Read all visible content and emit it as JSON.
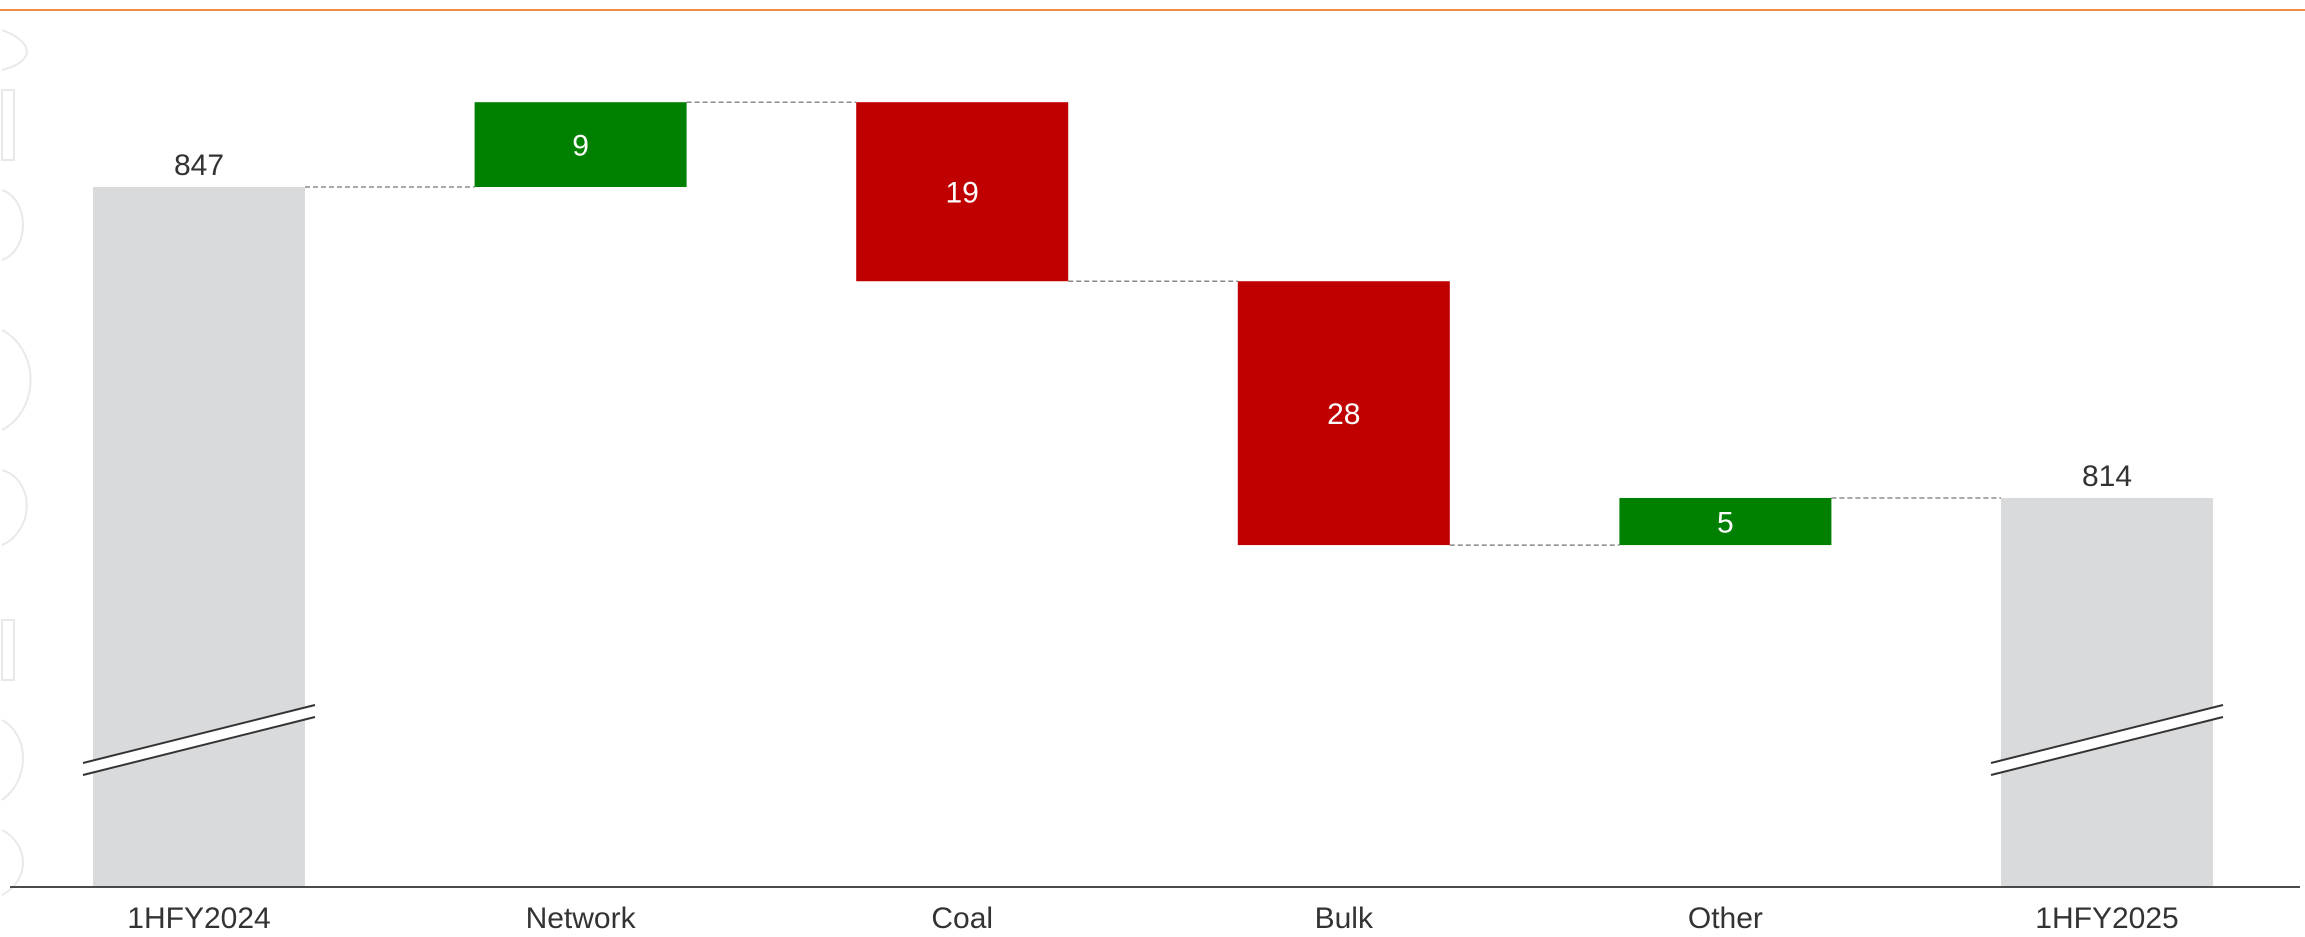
{
  "chart_data": {
    "type": "bar",
    "subtype": "waterfall",
    "title": "",
    "xlabel": "",
    "ylabel": "",
    "categories": [
      "1HFY2024",
      "Network",
      "Coal",
      "Bulk",
      "Other",
      "1HFY2025"
    ],
    "bars": [
      {
        "category": "1HFY2024",
        "kind": "total",
        "value": 847,
        "label": "847"
      },
      {
        "category": "Network",
        "kind": "increase",
        "value": 9,
        "label": "9"
      },
      {
        "category": "Coal",
        "kind": "decrease",
        "value": 19,
        "label": "19"
      },
      {
        "category": "Bulk",
        "kind": "decrease",
        "value": 28,
        "label": "28"
      },
      {
        "category": "Other",
        "kind": "increase",
        "value": 5,
        "label": "5"
      },
      {
        "category": "1HFY2025",
        "kind": "total",
        "value": 814,
        "label": "814"
      }
    ],
    "axis_break": true,
    "grid": false,
    "legend": "none",
    "colors": {
      "total": "#d9dadb",
      "increase": "#008000",
      "decrease": "#c00000",
      "connector": "#8a8a8a",
      "accent_rule": "#f08a4b"
    }
  }
}
